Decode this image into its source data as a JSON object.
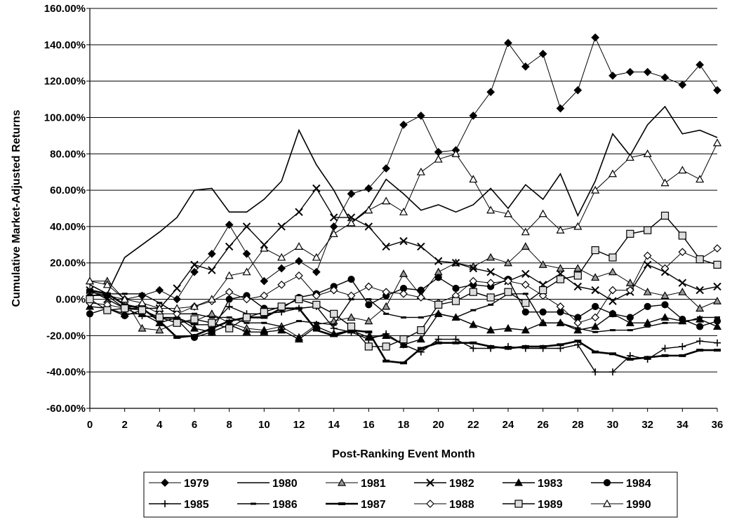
{
  "chart_data": {
    "type": "line",
    "x_label": "Post-Ranking Event Month",
    "y_label": "Cumulative Market-Adjusted Returns",
    "x": [
      0,
      1,
      2,
      3,
      4,
      5,
      6,
      7,
      8,
      9,
      10,
      11,
      12,
      13,
      14,
      15,
      16,
      17,
      18,
      19,
      20,
      21,
      22,
      23,
      24,
      25,
      26,
      27,
      28,
      29,
      30,
      31,
      32,
      33,
      34,
      35,
      36
    ],
    "xlim": [
      0,
      36
    ],
    "xticks": [
      0,
      2,
      4,
      6,
      8,
      10,
      12,
      14,
      16,
      18,
      20,
      22,
      24,
      26,
      28,
      30,
      32,
      34,
      36
    ],
    "ylim": [
      -60,
      160
    ],
    "yticks": [
      {
        "value": -60,
        "label": "-60.00%"
      },
      {
        "value": -40,
        "label": "-40.00%"
      },
      {
        "value": -20,
        "label": "-20.00%"
      },
      {
        "value": 0,
        "label": "0.00%"
      },
      {
        "value": 20,
        "label": "20.00%"
      },
      {
        "value": 40,
        "label": "40.00%"
      },
      {
        "value": 60,
        "label": "60.00%"
      },
      {
        "value": 80,
        "label": "80.00%"
      },
      {
        "value": 100,
        "label": "100.00%"
      },
      {
        "value": 120,
        "label": "120.00%"
      },
      {
        "value": 140,
        "label": "140.00%"
      },
      {
        "value": 160,
        "label": "160.00%"
      }
    ],
    "grid": true,
    "legend_position": "bottom",
    "series": [
      {
        "name": "1979",
        "color": "#000000",
        "marker": "diamond-filled",
        "line_width": 1,
        "values": [
          2,
          2,
          0,
          2,
          5,
          0,
          15,
          25,
          41,
          25,
          10,
          17,
          21,
          15,
          40,
          58,
          61,
          72,
          96,
          101,
          81,
          82,
          101,
          114,
          141,
          128,
          135,
          105,
          115,
          144,
          123,
          125,
          125,
          122,
          118,
          129,
          115
        ]
      },
      {
        "name": "1980",
        "color": "#000000",
        "marker": "none",
        "line_width": 1.6,
        "values": [
          8,
          3,
          23,
          30,
          37,
          45,
          60,
          61,
          48,
          48,
          55,
          65,
          93,
          74,
          60,
          42,
          50,
          66,
          58,
          49,
          52,
          48,
          52,
          61,
          50,
          63,
          55,
          69,
          46,
          65,
          91,
          79,
          96,
          106,
          91,
          93,
          89
        ]
      },
      {
        "name": "1981",
        "color": "#000000",
        "marker": "triangle-gray",
        "line_width": 1,
        "values": [
          10,
          10,
          0,
          -16,
          -17,
          -13,
          -12,
          -8,
          -13,
          -16,
          -17,
          -15,
          -21,
          -14,
          -12,
          -10,
          -12,
          -4,
          14,
          2,
          15,
          20,
          18,
          23,
          20,
          29,
          19,
          17,
          17,
          12,
          15,
          9,
          4,
          2,
          4,
          -5,
          -1
        ]
      },
      {
        "name": "1982",
        "color": "#000000",
        "marker": "x",
        "line_width": 1.4,
        "values": [
          5,
          0,
          -5,
          -5,
          -5,
          6,
          19,
          16,
          29,
          40,
          30,
          40,
          48,
          61,
          45,
          45,
          40,
          29,
          32,
          29,
          21,
          20,
          17,
          15,
          10,
          14,
          8,
          14,
          7,
          5,
          -1,
          4,
          19,
          15,
          9,
          5,
          7
        ]
      },
      {
        "name": "1983",
        "color": "#000000",
        "marker": "triangle-filled",
        "line_width": 1.4,
        "values": [
          -4,
          -5,
          -8,
          -8,
          -13,
          -10,
          -16,
          -18,
          -14,
          -18,
          -18,
          -17,
          -22,
          -15,
          -19,
          -17,
          -21,
          -20,
          -25,
          -22,
          -8,
          -10,
          -14,
          -17,
          -16,
          -17,
          -13,
          -13,
          -17,
          -15,
          -8,
          -13,
          -13,
          -10,
          -12,
          -11,
          -15
        ]
      },
      {
        "name": "1984",
        "color": "#000000",
        "marker": "circle-filled",
        "line_width": 1.4,
        "values": [
          -8,
          -5,
          -9,
          -6,
          -10,
          -11,
          -21,
          -18,
          0,
          2,
          -5,
          -5,
          1,
          3,
          7,
          11,
          -3,
          2,
          6,
          5,
          12,
          6,
          8,
          7,
          11,
          -7,
          -7,
          -7,
          -10,
          -4,
          -8,
          -10,
          -4,
          -3,
          -11,
          -15,
          -12
        ]
      },
      {
        "name": "1985",
        "color": "#000000",
        "marker": "plus",
        "line_width": 1.4,
        "values": [
          4,
          2,
          -5,
          -9,
          -10,
          -10,
          -14,
          -14,
          -4,
          -8,
          -8,
          -7,
          -5,
          -4,
          -16,
          -18,
          -22,
          -19,
          -25,
          -29,
          -22,
          -22,
          -27,
          -27,
          -26,
          -27,
          -27,
          -27,
          -25,
          -40,
          -40,
          -31,
          -33,
          -27,
          -26,
          -23,
          -24
        ]
      },
      {
        "name": "1986",
        "color": "#000000",
        "marker": "dash",
        "line_width": 1.4,
        "values": [
          2,
          3,
          3,
          3,
          -2,
          -8,
          -8,
          -10,
          -10,
          -13,
          -13,
          -15,
          -12,
          -13,
          -14,
          0,
          0,
          -8,
          -10,
          -10,
          -8,
          -10,
          -6,
          -3,
          3,
          3,
          -13,
          -13,
          -16,
          -18,
          -17,
          -17,
          -15,
          -13,
          -13,
          -10,
          -10
        ]
      },
      {
        "name": "1987",
        "color": "#000000",
        "marker": "dash-thick",
        "line_width": 2.6,
        "values": [
          5,
          3,
          -3,
          -5,
          -12,
          -21,
          -20,
          -16,
          -12,
          -10,
          -10,
          -5,
          -5,
          -17,
          -20,
          -17,
          -18,
          -34,
          -35,
          -27,
          -24,
          -24,
          -24,
          -26,
          -27,
          -26,
          -26,
          -25,
          -23,
          -29,
          -30,
          -33,
          -32,
          -31,
          -31,
          -28,
          -28
        ]
      },
      {
        "name": "1988",
        "color": "#000000",
        "marker": "diamond-open",
        "line_width": 1,
        "values": [
          -2,
          -3,
          -5,
          -3,
          -8,
          -8,
          -4,
          -1,
          4,
          0,
          2,
          8,
          13,
          2,
          5,
          2,
          7,
          4,
          3,
          1,
          -2,
          2,
          10,
          9,
          10,
          8,
          2,
          -4,
          -13,
          -10,
          5,
          5,
          24,
          17,
          26,
          22,
          28
        ]
      },
      {
        "name": "1989",
        "color": "#000000",
        "marker": "square-dot",
        "line_width": 1.4,
        "values": [
          0,
          -6,
          -5,
          -6,
          -10,
          -13,
          -11,
          -13,
          -16,
          -10,
          -7,
          -4,
          0,
          -3,
          -8,
          -15,
          -26,
          -26,
          -22,
          -17,
          -3,
          -1,
          4,
          1,
          4,
          -2,
          5,
          11,
          13,
          27,
          23,
          36,
          38,
          46,
          35,
          22,
          19
        ]
      },
      {
        "name": "1990",
        "color": "#000000",
        "marker": "triangle-open",
        "line_width": 1,
        "values": [
          10,
          8,
          0,
          -2,
          -5,
          -5,
          -4,
          0,
          13,
          15,
          28,
          23,
          29,
          23,
          36,
          42,
          49,
          54,
          48,
          70,
          77,
          80,
          66,
          49,
          47,
          37,
          47,
          38,
          40,
          60,
          69,
          78,
          80,
          64,
          71,
          66,
          86
        ]
      }
    ]
  }
}
